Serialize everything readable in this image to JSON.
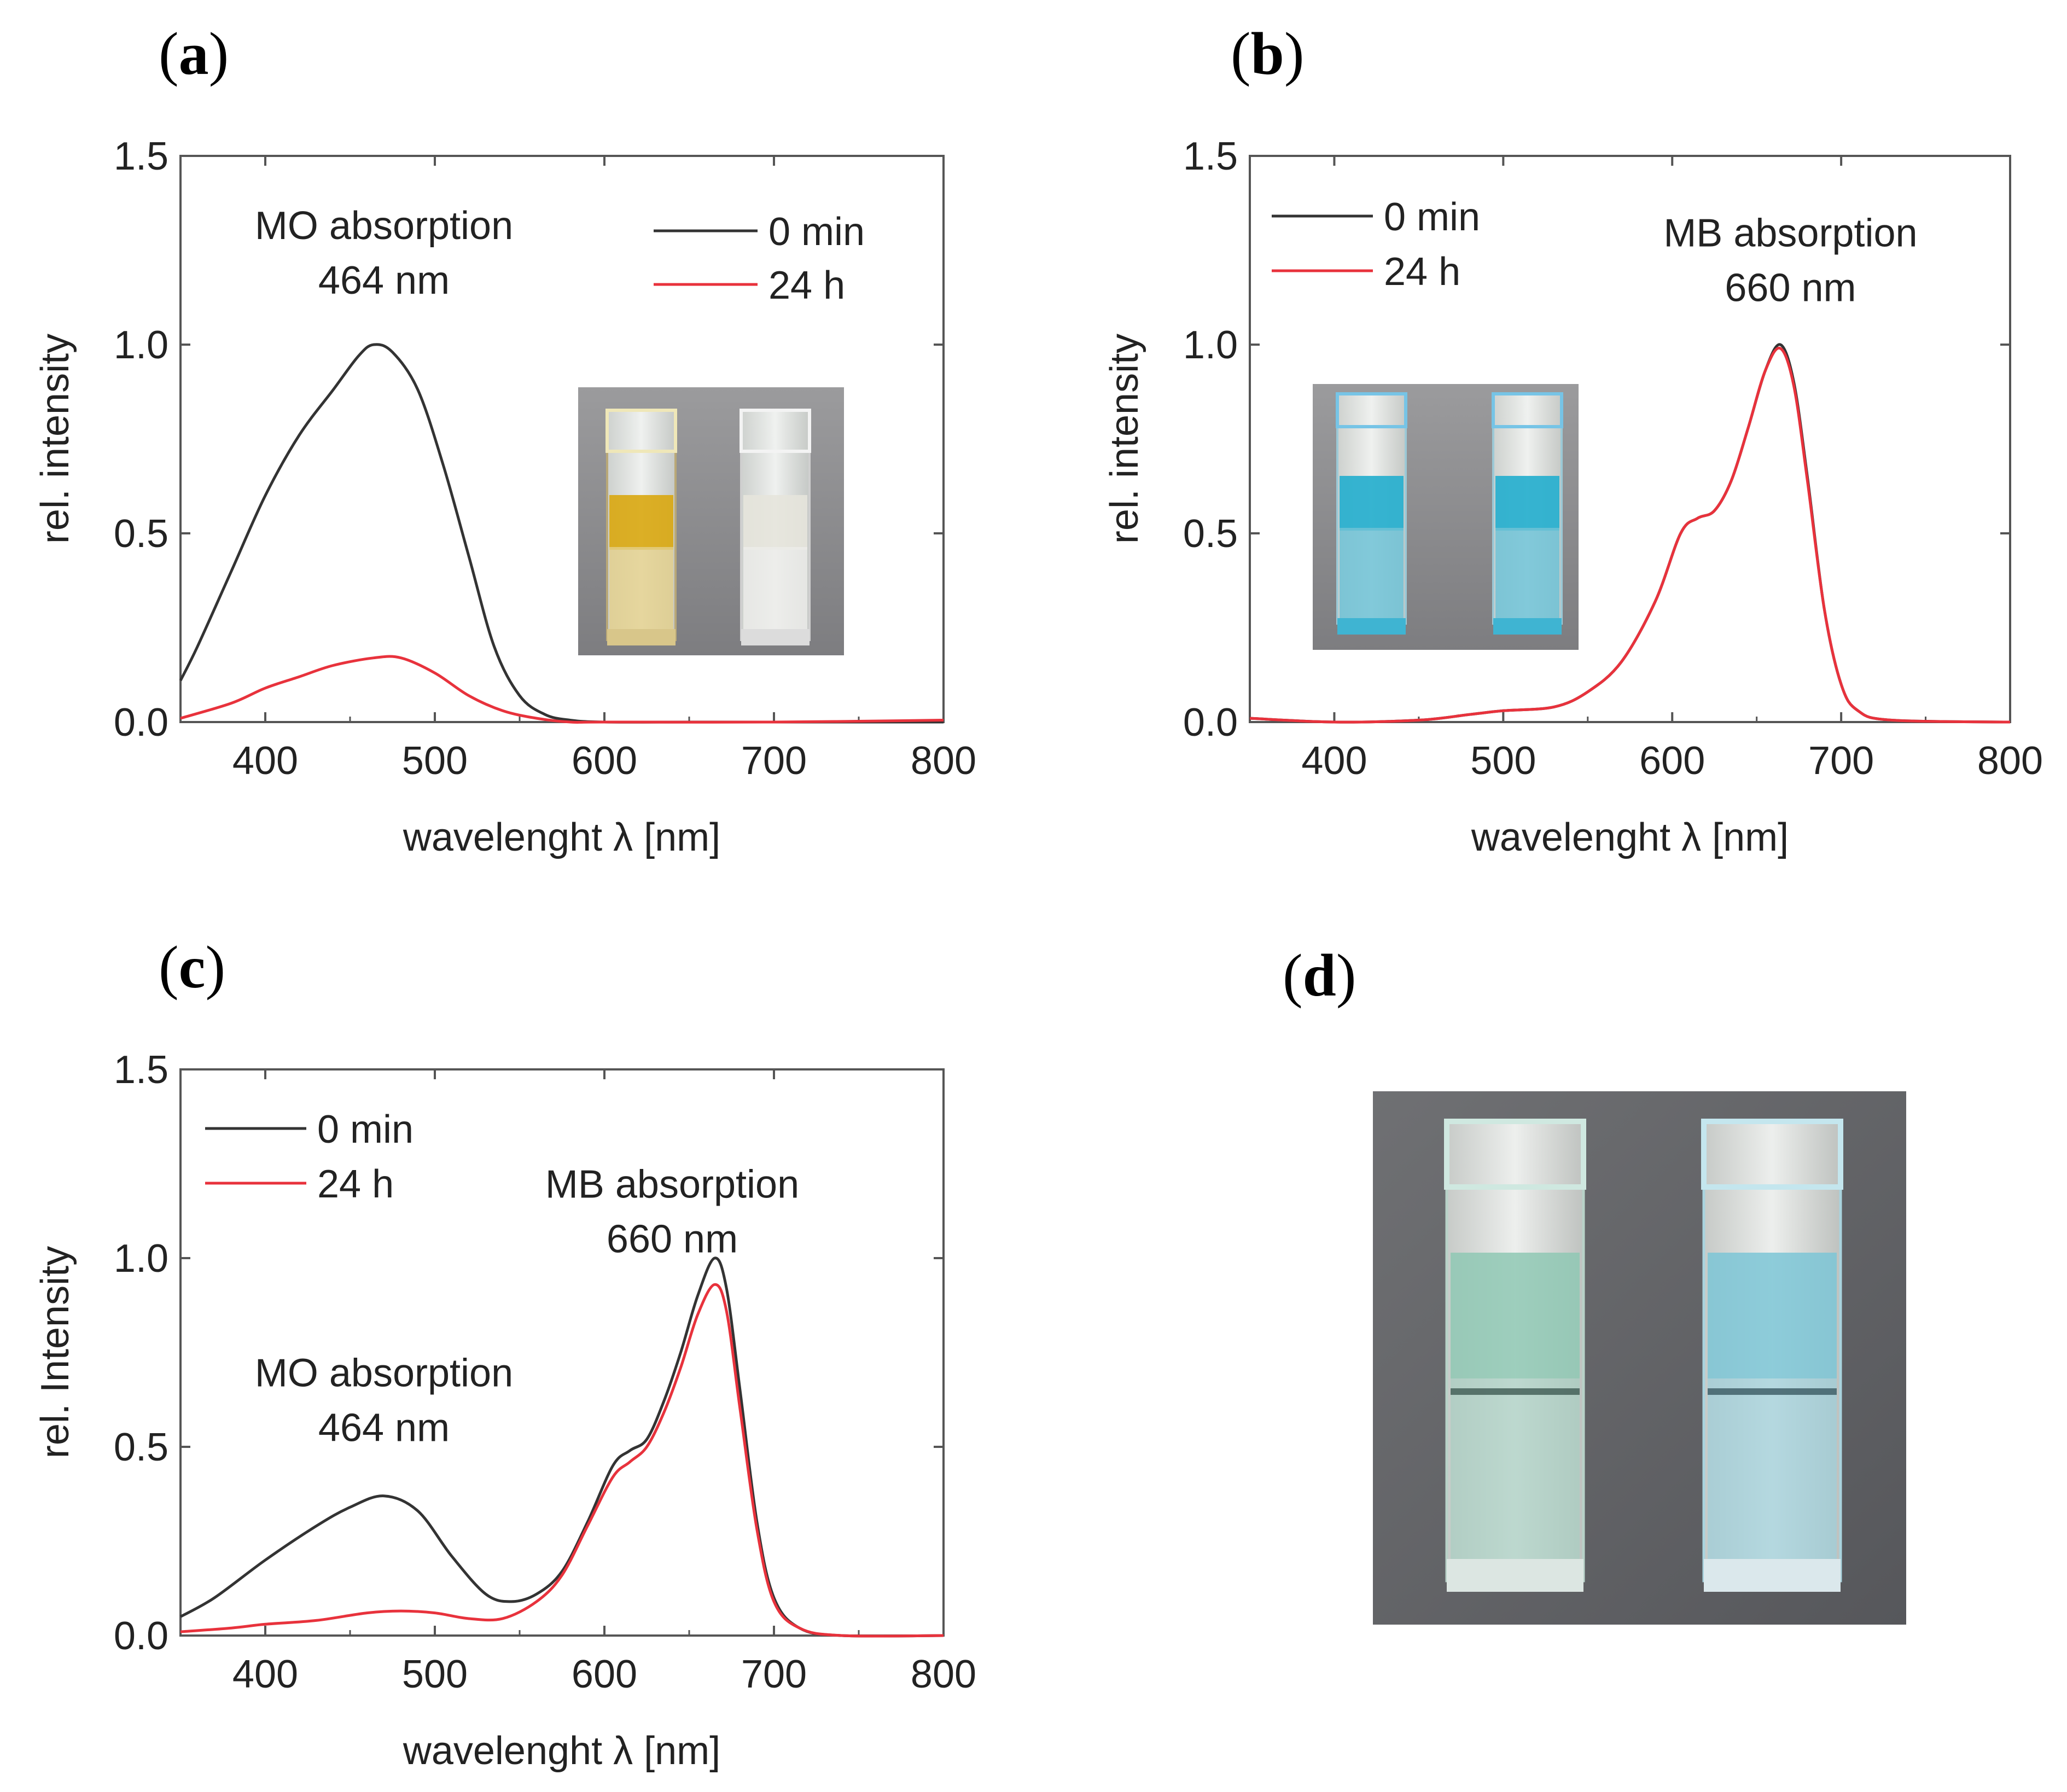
{
  "figure": {
    "panels": [
      {
        "label": "a"
      },
      {
        "label": "b"
      },
      {
        "label": "c"
      },
      {
        "label": "d"
      }
    ]
  },
  "chart_data": [
    {
      "id": "a",
      "type": "line",
      "xlabel": "wavelenght λ [nm]",
      "ylabel": "rel. intensity",
      "xlim": [
        350,
        800
      ],
      "ylim": [
        0,
        1.5
      ],
      "xticks": [
        "400",
        "500",
        "600",
        "700",
        "800"
      ],
      "yticks": [
        "0.0",
        "0.5",
        "1.0",
        "1.5"
      ],
      "legend_position": "top-right",
      "annotations": [
        {
          "lines": [
            "MO absorption",
            "464 nm"
          ],
          "x": 470,
          "y": 1.28
        }
      ],
      "series": [
        {
          "name": "0 min",
          "color": "#333333",
          "x": [
            350,
            360,
            380,
            400,
            420,
            440,
            455,
            464,
            475,
            490,
            505,
            520,
            535,
            550,
            565,
            580,
            600,
            650,
            700,
            800
          ],
          "y": [
            0.11,
            0.2,
            0.4,
            0.6,
            0.76,
            0.88,
            0.97,
            1.0,
            0.98,
            0.88,
            0.68,
            0.44,
            0.2,
            0.07,
            0.02,
            0.005,
            0.0,
            0.0,
            0.0,
            0.0
          ]
        },
        {
          "name": "24 h",
          "color": "#e8323c",
          "x": [
            350,
            380,
            400,
            420,
            440,
            464,
            480,
            500,
            520,
            540,
            560,
            580,
            600,
            700,
            800
          ],
          "y": [
            0.01,
            0.05,
            0.09,
            0.12,
            0.15,
            0.17,
            0.17,
            0.13,
            0.07,
            0.03,
            0.01,
            0.0,
            0.0,
            0.0,
            0.005
          ]
        }
      ],
      "inset": {
        "description_colors": [
          "#d9a70f",
          "#e6e4dc"
        ]
      }
    },
    {
      "id": "b",
      "type": "line",
      "xlabel": "wavelenght λ [nm]",
      "ylabel": "rel. intensity",
      "xlim": [
        350,
        800
      ],
      "ylim": [
        0,
        1.5
      ],
      "xticks": [
        "400",
        "500",
        "600",
        "700",
        "800"
      ],
      "yticks": [
        "0.0",
        "0.5",
        "1.0",
        "1.5"
      ],
      "legend_position": "top-left",
      "annotations": [
        {
          "lines": [
            "MB absorption",
            "660 nm"
          ],
          "x": 670,
          "y": 1.26
        }
      ],
      "series": [
        {
          "name": "0 min",
          "color": "#333333",
          "x": [
            350,
            400,
            450,
            480,
            500,
            530,
            550,
            570,
            590,
            605,
            615,
            625,
            635,
            645,
            655,
            664,
            672,
            680,
            690,
            700,
            710,
            730,
            800
          ],
          "y": [
            0.01,
            0.0,
            0.005,
            0.02,
            0.03,
            0.04,
            0.08,
            0.16,
            0.32,
            0.5,
            0.54,
            0.56,
            0.64,
            0.78,
            0.93,
            1.0,
            0.9,
            0.65,
            0.3,
            0.1,
            0.03,
            0.005,
            0.0
          ]
        },
        {
          "name": "24 h",
          "color": "#e8323c",
          "x": [
            350,
            400,
            450,
            480,
            500,
            530,
            550,
            570,
            590,
            605,
            615,
            625,
            635,
            645,
            655,
            664,
            672,
            680,
            690,
            700,
            710,
            730,
            800
          ],
          "y": [
            0.01,
            0.0,
            0.005,
            0.02,
            0.03,
            0.04,
            0.08,
            0.16,
            0.32,
            0.5,
            0.54,
            0.56,
            0.64,
            0.78,
            0.93,
            0.99,
            0.89,
            0.64,
            0.3,
            0.1,
            0.03,
            0.005,
            0.0
          ]
        }
      ],
      "inset": {
        "description_colors": [
          "#2bb0cf",
          "#2bb0cf"
        ]
      }
    },
    {
      "id": "c",
      "type": "line",
      "xlabel": "wavelenght λ [nm]",
      "ylabel": "rel. Intensity",
      "xlim": [
        350,
        800
      ],
      "ylim": [
        0,
        1.5
      ],
      "xticks": [
        "400",
        "500",
        "600",
        "700",
        "800"
      ],
      "yticks": [
        "0.0",
        "0.5",
        "1.0",
        "1.5"
      ],
      "legend_position": "top-left",
      "annotations": [
        {
          "lines": [
            "MO absorption",
            "464 nm"
          ],
          "x": 470,
          "y": 0.66
        },
        {
          "lines": [
            "MB absorption",
            "660 nm"
          ],
          "x": 640,
          "y": 1.16
        }
      ],
      "series": [
        {
          "name": "0 min",
          "color": "#333333",
          "x": [
            350,
            370,
            400,
            430,
            450,
            470,
            490,
            510,
            530,
            545,
            560,
            575,
            590,
            605,
            615,
            625,
            635,
            645,
            655,
            665,
            672,
            680,
            690,
            700,
            715,
            740,
            800
          ],
          "y": [
            0.05,
            0.1,
            0.2,
            0.29,
            0.34,
            0.37,
            0.33,
            0.21,
            0.11,
            0.09,
            0.11,
            0.17,
            0.3,
            0.45,
            0.49,
            0.52,
            0.62,
            0.75,
            0.9,
            1.0,
            0.92,
            0.65,
            0.3,
            0.1,
            0.02,
            0.0,
            0.0
          ]
        },
        {
          "name": "24 h",
          "color": "#e8323c",
          "x": [
            350,
            380,
            400,
            430,
            460,
            480,
            500,
            520,
            540,
            560,
            575,
            590,
            605,
            615,
            625,
            635,
            645,
            655,
            665,
            672,
            680,
            690,
            700,
            715,
            740,
            800
          ],
          "y": [
            0.01,
            0.02,
            0.03,
            0.04,
            0.06,
            0.065,
            0.06,
            0.045,
            0.045,
            0.09,
            0.16,
            0.29,
            0.42,
            0.46,
            0.5,
            0.59,
            0.71,
            0.85,
            0.93,
            0.86,
            0.6,
            0.28,
            0.09,
            0.02,
            0.0,
            0.0
          ]
        }
      ]
    }
  ],
  "photo_d": {
    "description_colors": [
      "#8fc8b4",
      "#7cc6d6"
    ]
  }
}
